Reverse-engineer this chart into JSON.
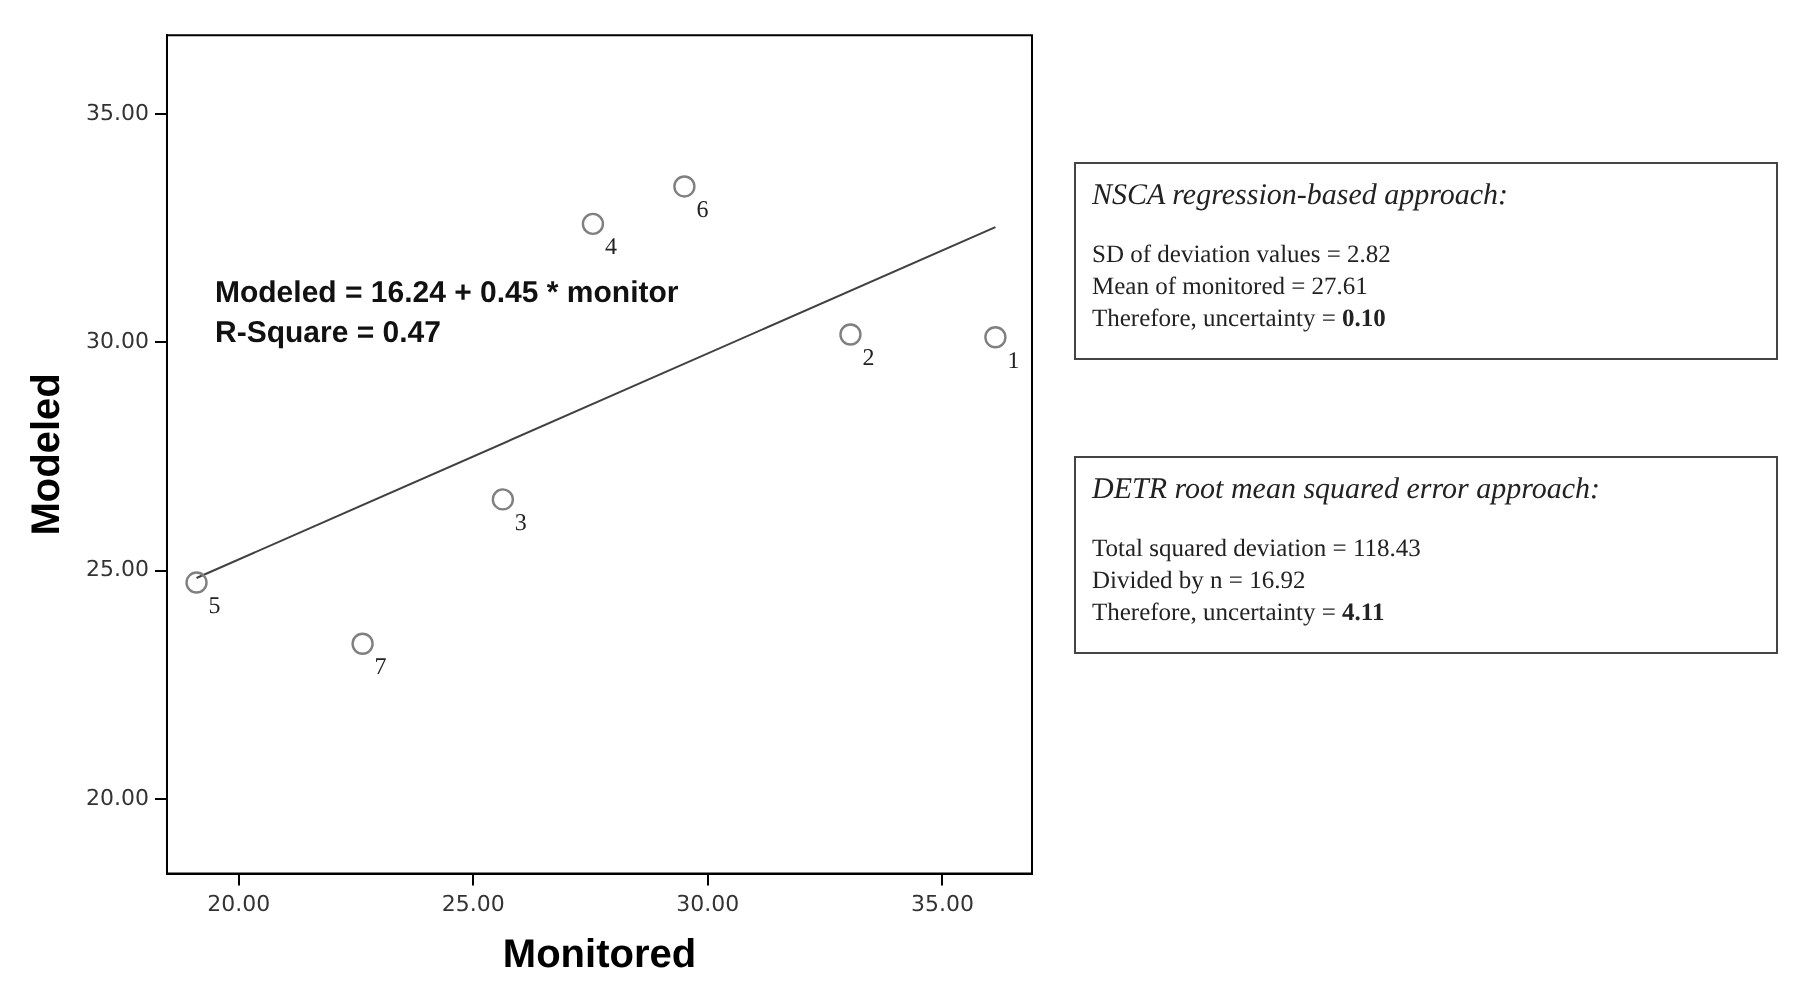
{
  "chart_data": [
    {
      "type": "scatter",
      "xlabel": "Monitored",
      "ylabel": "Modeled",
      "grid": false,
      "legend": false,
      "xlim": [
        18.47,
        36.91
      ],
      "ylim": [
        18.37,
        36.72
      ],
      "xticks": [
        {
          "value": 20,
          "label": "20.00"
        },
        {
          "value": 25,
          "label": "25.00"
        },
        {
          "value": 30,
          "label": "30.00"
        },
        {
          "value": 35,
          "label": "35.00"
        }
      ],
      "yticks": [
        {
          "value": 20,
          "label": "20.00"
        },
        {
          "value": 25,
          "label": "25.00"
        },
        {
          "value": 30,
          "label": "30.00"
        },
        {
          "value": 35,
          "label": "35.00"
        }
      ],
      "series": [
        {
          "type": "scatter",
          "marker": "circle",
          "color": "#808080",
          "x": [
            36.13,
            33.04,
            25.63,
            27.55,
            19.1,
            29.5,
            22.64
          ],
          "values": [
            30.11,
            30.17,
            26.56,
            32.59,
            24.74,
            33.41,
            23.4
          ]
        },
        {
          "type": "line",
          "color": "#404040",
          "x": [
            19.1,
            36.13
          ],
          "values": [
            24.84,
            32.52
          ]
        }
      ],
      "annotations": [
        "Modeled = 16.24 + 0.45 * monitor",
        "R-Square = 0.47",
        {
          "text": "1",
          "x": 36.13,
          "y": 30.11
        },
        {
          "text": "2",
          "x": 33.04,
          "y": 30.17
        },
        {
          "text": "3",
          "x": 25.63,
          "y": 26.56
        },
        {
          "text": "4",
          "x": 27.55,
          "y": 32.59
        },
        {
          "text": "5",
          "x": 19.1,
          "y": 24.74
        },
        {
          "text": "6",
          "x": 29.5,
          "y": 33.41
        },
        {
          "text": "7",
          "x": 22.64,
          "y": 23.4
        }
      ]
    },
    {
      "type": "other",
      "title": "NSCA regression-based approach:",
      "annotations": [
        "SD of deviation values = 2.82",
        "Mean of monitored = 27.61",
        "Therefore, uncertainty = 0.10"
      ]
    },
    {
      "type": "other",
      "title": "DETR root mean squared error approach:",
      "annotations": [
        "Total squared deviation = 118.43",
        "Divided by n = 16.92",
        "Therefore, uncertainty = 4.11"
      ]
    }
  ]
}
